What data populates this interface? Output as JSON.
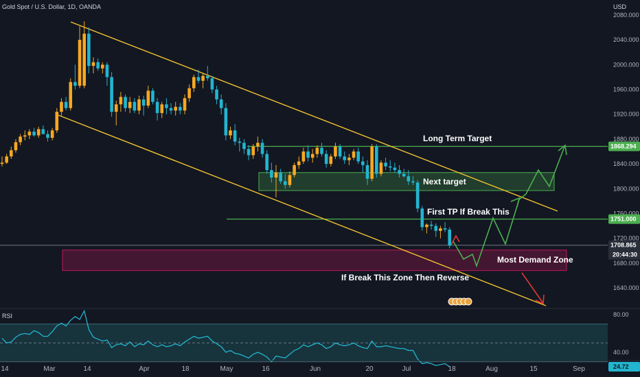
{
  "header": {
    "symbol": "Gold Spot / U.S. Dollar, 1D, OANDA",
    "currency": "USD"
  },
  "colors": {
    "background": "#131722",
    "bull": "#f7a821",
    "bear": "#22b5cf",
    "channel": "#f2c230",
    "level": "#4caf50",
    "target_zone": "#4caf50",
    "demand_zone": "#c2185b",
    "path_green": "#4caf50",
    "path_red": "#e53935",
    "rsi_line": "#22b5cf",
    "rsi_band": "#1c4a52"
  },
  "chart_data": [
    {
      "type": "candlestick",
      "title": "Gold Spot / U.S. Dollar, 1D, OANDA",
      "ylabel": "USD",
      "ylim": [
        1605,
        2090
      ],
      "y_ticks": [
        "2080.000",
        "2040.000",
        "2000.000",
        "1960.000",
        "1920.000",
        "1880.000",
        "1840.000",
        "1800.000",
        "1760.000",
        "1720.000",
        "1680.000",
        "1640.000"
      ],
      "x_ticks": [
        "14",
        "Mar",
        "14",
        "Apr",
        "18",
        "May",
        "16",
        "Jun",
        "20",
        "Jul",
        "18",
        "Aug",
        "15",
        "Sep"
      ],
      "ohlc": [
        [
          1840,
          1852,
          1836,
          1842
        ],
        [
          1842,
          1856,
          1840,
          1852
        ],
        [
          1852,
          1868,
          1848,
          1862
        ],
        [
          1862,
          1880,
          1858,
          1875
        ],
        [
          1875,
          1888,
          1870,
          1884
        ],
        [
          1884,
          1894,
          1878,
          1886
        ],
        [
          1886,
          1896,
          1880,
          1892
        ],
        [
          1892,
          1898,
          1884,
          1886
        ],
        [
          1886,
          1900,
          1882,
          1896
        ],
        [
          1896,
          1902,
          1890,
          1888
        ],
        [
          1888,
          1894,
          1876,
          1882
        ],
        [
          1882,
          1898,
          1878,
          1894
        ],
        [
          1894,
          1930,
          1890,
          1924
        ],
        [
          1924,
          1946,
          1918,
          1940
        ],
        [
          1940,
          1948,
          1926,
          1930
        ],
        [
          1930,
          1978,
          1926,
          1972
        ],
        [
          1972,
          2000,
          1960,
          1966
        ],
        [
          1966,
          2062,
          1962,
          2040
        ],
        [
          1966,
          2070,
          1962,
          2050
        ],
        [
          2050,
          2060,
          1986,
          1998
        ],
        [
          1998,
          2012,
          1986,
          2004
        ],
        [
          2004,
          2010,
          1990,
          1994
        ],
        [
          1994,
          2004,
          1986,
          2000
        ],
        [
          2000,
          2004,
          1966,
          1980
        ],
        [
          1980,
          1988,
          1916,
          1924
        ],
        [
          1924,
          1942,
          1902,
          1936
        ],
        [
          1936,
          1956,
          1924,
          1948
        ],
        [
          1948,
          1952,
          1924,
          1930
        ],
        [
          1930,
          1948,
          1922,
          1940
        ],
        [
          1940,
          1946,
          1922,
          1926
        ],
        [
          1926,
          1950,
          1920,
          1944
        ],
        [
          1944,
          1950,
          1918,
          1934
        ],
        [
          1934,
          1966,
          1930,
          1958
        ],
        [
          1958,
          1962,
          1936,
          1940
        ],
        [
          1940,
          1946,
          1910,
          1922
        ],
        [
          1922,
          1940,
          1914,
          1936
        ],
        [
          1936,
          1946,
          1920,
          1930
        ],
        [
          1930,
          1938,
          1920,
          1926
        ],
        [
          1926,
          1940,
          1918,
          1932
        ],
        [
          1932,
          1938,
          1920,
          1926
        ],
        [
          1926,
          1952,
          1920,
          1946
        ],
        [
          1946,
          1968,
          1940,
          1962
        ],
        [
          1962,
          1984,
          1956,
          1980
        ],
        [
          1980,
          1992,
          1970,
          1974
        ],
        [
          1974,
          1986,
          1962,
          1982
        ],
        [
          1982,
          1998,
          1974,
          1978
        ],
        [
          1978,
          1982,
          1954,
          1960
        ],
        [
          1960,
          1966,
          1936,
          1944
        ],
        [
          1944,
          1952,
          1920,
          1930
        ],
        [
          1930,
          1938,
          1878,
          1886
        ],
        [
          1886,
          1900,
          1880,
          1894
        ],
        [
          1894,
          1904,
          1870,
          1876
        ],
        [
          1876,
          1882,
          1860,
          1874
        ],
        [
          1874,
          1880,
          1856,
          1864
        ],
        [
          1864,
          1870,
          1846,
          1854
        ],
        [
          1854,
          1872,
          1848,
          1868
        ],
        [
          1868,
          1884,
          1860,
          1874
        ],
        [
          1874,
          1880,
          1850,
          1856
        ],
        [
          1856,
          1862,
          1824,
          1830
        ],
        [
          1830,
          1842,
          1810,
          1818
        ],
        [
          1818,
          1838,
          1786,
          1826
        ],
        [
          1826,
          1832,
          1808,
          1812
        ],
        [
          1812,
          1824,
          1800,
          1806
        ],
        [
          1806,
          1828,
          1802,
          1822
        ],
        [
          1822,
          1842,
          1818,
          1838
        ],
        [
          1838,
          1852,
          1832,
          1844
        ],
        [
          1844,
          1866,
          1840,
          1860
        ],
        [
          1860,
          1870,
          1844,
          1850
        ],
        [
          1850,
          1864,
          1842,
          1856
        ],
        [
          1856,
          1870,
          1850,
          1866
        ],
        [
          1866,
          1874,
          1852,
          1856
        ],
        [
          1856,
          1862,
          1834,
          1840
        ],
        [
          1840,
          1856,
          1836,
          1852
        ],
        [
          1852,
          1874,
          1848,
          1868
        ],
        [
          1868,
          1872,
          1848,
          1852
        ],
        [
          1852,
          1860,
          1840,
          1846
        ],
        [
          1846,
          1856,
          1838,
          1850
        ],
        [
          1850,
          1864,
          1846,
          1860
        ],
        [
          1860,
          1866,
          1840,
          1844
        ],
        [
          1844,
          1852,
          1826,
          1838
        ],
        [
          1838,
          1846,
          1806,
          1816
        ],
        [
          1816,
          1872,
          1812,
          1868
        ],
        [
          1868,
          1872,
          1818,
          1824
        ],
        [
          1824,
          1846,
          1820,
          1842
        ],
        [
          1842,
          1850,
          1830,
          1836
        ],
        [
          1836,
          1846,
          1828,
          1834
        ],
        [
          1834,
          1842,
          1826,
          1830
        ],
        [
          1830,
          1838,
          1818,
          1824
        ],
        [
          1824,
          1832,
          1818,
          1820
        ],
        [
          1820,
          1830,
          1806,
          1812
        ],
        [
          1812,
          1820,
          1806,
          1810
        ],
        [
          1810,
          1814,
          1762,
          1768
        ],
        [
          1768,
          1772,
          1732,
          1738
        ],
        [
          1738,
          1744,
          1728,
          1742
        ],
        [
          1742,
          1748,
          1734,
          1740
        ],
        [
          1740,
          1744,
          1722,
          1732
        ],
        [
          1732,
          1740,
          1720,
          1736
        ],
        [
          1736,
          1746,
          1730,
          1734
        ],
        [
          1734,
          1738,
          1704,
          1708
        ]
      ]
    },
    {
      "type": "line",
      "title": "RSI",
      "ylim": [
        22,
        92
      ],
      "y_ticks": [
        "80.00",
        "40.00"
      ],
      "band": [
        30,
        70
      ],
      "midline": 50,
      "last_value": "24.72",
      "values": [
        55,
        50,
        51,
        56,
        59,
        60,
        59,
        63,
        61,
        57,
        57,
        62,
        68,
        71,
        68,
        74,
        78,
        75,
        84,
        64,
        56,
        54,
        52,
        53,
        45,
        48,
        49,
        47,
        51,
        46,
        49,
        48,
        52,
        48,
        46,
        48,
        46,
        47,
        49,
        47,
        51,
        54,
        57,
        55,
        56,
        57,
        52,
        49,
        46,
        40,
        42,
        39,
        38,
        36,
        34,
        38,
        40,
        38,
        35,
        30,
        36,
        35,
        34,
        38,
        42,
        44,
        48,
        46,
        48,
        50,
        48,
        44,
        46,
        50,
        48,
        47,
        48,
        50,
        47,
        45,
        44,
        52,
        46,
        46,
        47,
        46,
        45,
        44,
        44,
        42,
        42,
        33,
        28,
        29,
        28,
        26,
        27,
        28,
        24.72
      ]
    }
  ],
  "levels": [
    {
      "label": "1868.294",
      "value": 1868.294
    },
    {
      "label": "1751.000",
      "value": 1751
    }
  ],
  "price_tag": {
    "value": "1708.865",
    "countdown": "20:44:30"
  },
  "annotations": {
    "long_term_target": "Long Term Target",
    "next_target": "Next target",
    "first_tp": "First TP  If Break This",
    "most_demand_zone": "Most Demand Zone",
    "break_reverse": "If Break This Zone Then Reverse"
  }
}
